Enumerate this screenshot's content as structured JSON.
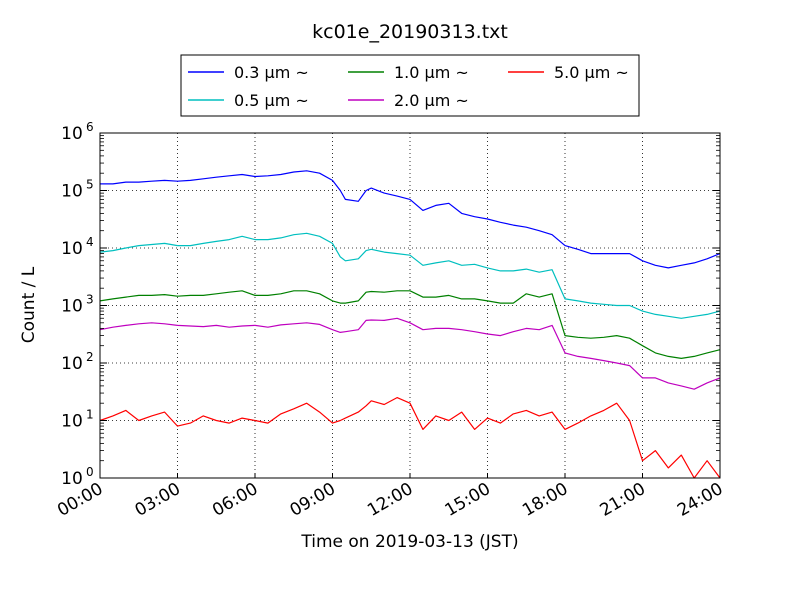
{
  "chart_data": {
    "type": "line",
    "title": "kc01e_20190313.txt",
    "xlabel": "Time on 2019-03-13 (JST)",
    "ylabel": "Count / L",
    "y_scale": "log",
    "ylim": [
      1,
      1000000
    ],
    "xlim_hours": [
      0,
      24
    ],
    "grid": true,
    "legend_position": "top-center",
    "x_ticks": [
      "00:00",
      "03:00",
      "06:00",
      "09:00",
      "12:00",
      "15:00",
      "18:00",
      "21:00",
      "24:00"
    ],
    "y_ticks": [
      {
        "value": 1,
        "base": "10",
        "exp": "0"
      },
      {
        "value": 10,
        "base": "10",
        "exp": "1"
      },
      {
        "value": 100,
        "base": "10",
        "exp": "2"
      },
      {
        "value": 1000,
        "base": "10",
        "exp": "3"
      },
      {
        "value": 10000,
        "base": "10",
        "exp": "4"
      },
      {
        "value": 100000,
        "base": "10",
        "exp": "5"
      },
      {
        "value": 1000000,
        "base": "10",
        "exp": "6"
      }
    ],
    "series": [
      {
        "name": "0.3 μm ~",
        "color": "#0000ff",
        "x": [
          0,
          0.5,
          1,
          1.5,
          2,
          2.5,
          3,
          3.5,
          4,
          4.5,
          5,
          5.5,
          6,
          6.5,
          7,
          7.5,
          8,
          8.5,
          9,
          9.3,
          9.5,
          10,
          10.3,
          10.5,
          11,
          11.5,
          12,
          12.5,
          13,
          13.5,
          14,
          14.5,
          15,
          15.5,
          16,
          16.5,
          17,
          17.5,
          18,
          18.5,
          19,
          19.5,
          20,
          20.5,
          21,
          21.5,
          22,
          22.5,
          23,
          23.5,
          24
        ],
        "values": [
          130000,
          130000,
          140000,
          140000,
          145000,
          150000,
          145000,
          150000,
          160000,
          170000,
          180000,
          190000,
          175000,
          180000,
          190000,
          210000,
          220000,
          200000,
          150000,
          100000,
          70000,
          65000,
          100000,
          110000,
          90000,
          80000,
          70000,
          45000,
          55000,
          60000,
          40000,
          35000,
          32000,
          28000,
          25000,
          23000,
          20000,
          17000,
          11000,
          9500,
          8000,
          8000,
          8000,
          8000,
          6000,
          5000,
          4500,
          5000,
          5500,
          6500,
          8000
        ]
      },
      {
        "name": "0.5 μm ~",
        "color": "#00bfbf",
        "x": [
          0,
          0.5,
          1,
          1.5,
          2,
          2.5,
          3,
          3.5,
          4,
          4.5,
          5,
          5.5,
          6,
          6.5,
          7,
          7.5,
          8,
          8.5,
          9,
          9.3,
          9.5,
          10,
          10.3,
          10.5,
          11,
          11.5,
          12,
          12.5,
          13,
          13.5,
          14,
          14.5,
          15,
          15.5,
          16,
          16.5,
          17,
          17.5,
          18,
          18.5,
          19,
          19.5,
          20,
          20.5,
          21,
          21.5,
          22,
          22.5,
          23,
          23.5,
          24
        ],
        "values": [
          8500,
          9000,
          10000,
          11000,
          11500,
          12000,
          11000,
          11000,
          12000,
          13000,
          14000,
          16000,
          14000,
          14000,
          15000,
          17000,
          18000,
          16000,
          12000,
          7000,
          6000,
          6500,
          9000,
          9500,
          8500,
          8000,
          7500,
          5000,
          5500,
          6000,
          5000,
          5200,
          4500,
          4000,
          4000,
          4300,
          3800,
          4200,
          1300,
          1200,
          1100,
          1050,
          1000,
          1000,
          800,
          700,
          650,
          600,
          650,
          700,
          800
        ]
      },
      {
        "name": "1.0 μm ~",
        "color": "#008000",
        "x": [
          0,
          0.5,
          1,
          1.5,
          2,
          2.5,
          3,
          3.5,
          4,
          4.5,
          5,
          5.5,
          6,
          6.5,
          7,
          7.5,
          8,
          8.5,
          9,
          9.3,
          9.5,
          10,
          10.3,
          10.5,
          11,
          11.5,
          12,
          12.5,
          13,
          13.5,
          14,
          14.5,
          15,
          15.5,
          16,
          16.5,
          17,
          17.5,
          18,
          18.5,
          19,
          19.5,
          20,
          20.5,
          21,
          21.5,
          22,
          22.5,
          23,
          23.5,
          24
        ],
        "values": [
          1200,
          1300,
          1400,
          1500,
          1500,
          1550,
          1450,
          1500,
          1500,
          1600,
          1700,
          1800,
          1500,
          1500,
          1600,
          1800,
          1800,
          1600,
          1200,
          1100,
          1100,
          1200,
          1700,
          1750,
          1700,
          1800,
          1800,
          1400,
          1400,
          1500,
          1300,
          1300,
          1200,
          1100,
          1100,
          1600,
          1400,
          1600,
          300,
          280,
          270,
          280,
          300,
          270,
          200,
          150,
          130,
          120,
          130,
          150,
          170
        ]
      },
      {
        "name": "2.0 μm ~",
        "color": "#bf00bf",
        "x": [
          0,
          0.5,
          1,
          1.5,
          2,
          2.5,
          3,
          3.5,
          4,
          4.5,
          5,
          5.5,
          6,
          6.5,
          7,
          7.5,
          8,
          8.5,
          9,
          9.3,
          9.5,
          10,
          10.3,
          10.5,
          11,
          11.5,
          12,
          12.5,
          13,
          13.5,
          14,
          14.5,
          15,
          15.5,
          16,
          16.5,
          17,
          17.5,
          18,
          18.5,
          19,
          19.5,
          20,
          20.5,
          21,
          21.5,
          22,
          22.5,
          23,
          23.5,
          24
        ],
        "values": [
          380,
          420,
          450,
          480,
          500,
          480,
          450,
          440,
          430,
          450,
          420,
          440,
          450,
          420,
          460,
          480,
          500,
          470,
          380,
          340,
          350,
          380,
          550,
          560,
          550,
          600,
          500,
          380,
          400,
          400,
          380,
          350,
          320,
          300,
          350,
          400,
          380,
          450,
          150,
          130,
          120,
          110,
          100,
          90,
          55,
          55,
          45,
          40,
          35,
          45,
          55
        ]
      },
      {
        "name": "5.0 μm ~",
        "color": "#ff0000",
        "x": [
          0,
          0.5,
          1,
          1.5,
          2,
          2.5,
          3,
          3.5,
          4,
          4.5,
          5,
          5.5,
          6,
          6.5,
          7,
          7.5,
          8,
          8.5,
          9,
          9.3,
          9.5,
          10,
          10.3,
          10.5,
          11,
          11.5,
          12,
          12.5,
          13,
          13.5,
          14,
          14.5,
          15,
          15.5,
          16,
          16.5,
          17,
          17.5,
          18,
          18.5,
          19,
          19.5,
          20,
          20.5,
          21,
          21.5,
          22,
          22.5,
          23,
          23.5,
          24
        ],
        "values": [
          10,
          12,
          15,
          10,
          12,
          14,
          8,
          9,
          12,
          10,
          9,
          11,
          10,
          9,
          13,
          16,
          20,
          14,
          9,
          10,
          11,
          14,
          18,
          22,
          19,
          25,
          20,
          7,
          12,
          10,
          14,
          7,
          11,
          9,
          13,
          15,
          12,
          14,
          7,
          9,
          12,
          15,
          20,
          10,
          2,
          3,
          1.5,
          2.5,
          1,
          2,
          1
        ]
      }
    ]
  }
}
